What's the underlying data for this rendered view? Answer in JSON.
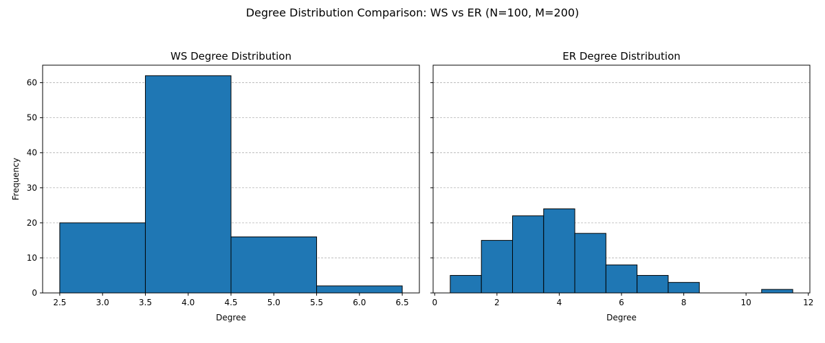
{
  "figure": {
    "suptitle": "Degree Distribution Comparison: WS vs ER (N=100, M=200)"
  },
  "colors": {
    "bar_fill": "#1f77b4",
    "bar_edge": "#000000",
    "grid": "#b0b0b0"
  },
  "chart_data": [
    {
      "type": "bar",
      "title": "WS Degree Distribution",
      "xlabel": "Degree",
      "ylabel": "Frequency",
      "bin_edges": [
        2.5,
        3.5,
        4.5,
        5.5,
        6.5
      ],
      "values": [
        20,
        62,
        16,
        2
      ],
      "xlim": [
        2.3,
        6.7
      ],
      "ylim": [
        0,
        65
      ],
      "xticks": [
        2.5,
        3.0,
        3.5,
        4.0,
        4.5,
        5.0,
        5.5,
        6.0,
        6.5
      ],
      "xtick_labels": [
        "2.5",
        "3.0",
        "3.5",
        "4.0",
        "4.5",
        "5.0",
        "5.5",
        "6.0",
        "6.5"
      ],
      "yticks": [
        0,
        10,
        20,
        30,
        40,
        50,
        60
      ],
      "ytick_labels": [
        "0",
        "10",
        "20",
        "30",
        "40",
        "50",
        "60"
      ],
      "grid_y": true,
      "show_ytick_labels": true
    },
    {
      "type": "bar",
      "title": "ER Degree Distribution",
      "xlabel": "Degree",
      "ylabel": "",
      "bin_edges": [
        0.5,
        1.5,
        2.5,
        3.5,
        4.5,
        5.5,
        6.5,
        7.5,
        8.5,
        9.5,
        10.5,
        11.5
      ],
      "values": [
        5,
        15,
        22,
        24,
        17,
        8,
        5,
        3,
        0,
        0,
        1
      ],
      "xlim": [
        -0.05,
        12.05
      ],
      "ylim": [
        0,
        65
      ],
      "xticks": [
        0,
        2,
        4,
        6,
        8,
        10,
        12
      ],
      "xtick_labels": [
        "0",
        "2",
        "4",
        "6",
        "8",
        "10",
        "12"
      ],
      "yticks": [
        0,
        10,
        20,
        30,
        40,
        50,
        60
      ],
      "ytick_labels": [
        "",
        "",
        "",
        "",
        "",
        "",
        ""
      ],
      "grid_y": true,
      "show_ytick_labels": false
    }
  ]
}
